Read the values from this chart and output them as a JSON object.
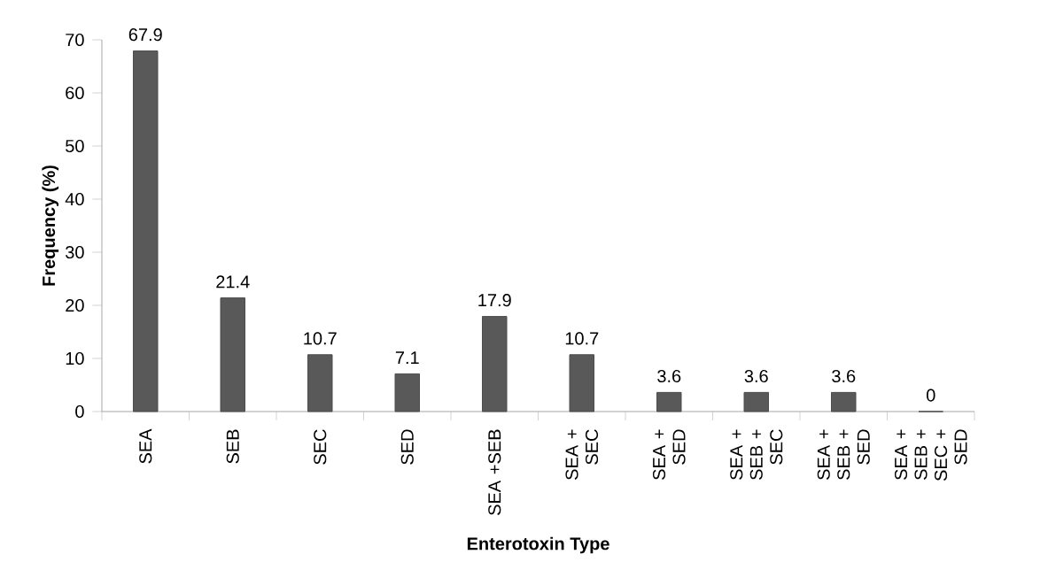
{
  "chart_data": {
    "type": "bar",
    "xlabel": "Enterotoxin Type",
    "ylabel": "Frequency (%)",
    "categories": [
      "SEA",
      "SEB",
      "SEC",
      "SED",
      "SEA +SEB",
      "SEA + SEC",
      "SEA + SED",
      "SEA + SEB + SEC",
      "SEA + SEB + SED",
      "SEA + SEB + SEC + SED"
    ],
    "values": [
      67.9,
      21.4,
      10.7,
      7.1,
      17.9,
      10.7,
      3.6,
      3.6,
      3.6,
      0
    ],
    "color": "#595959",
    "ylim": [
      0,
      70
    ],
    "yticks": [
      0,
      10,
      20,
      30,
      40,
      50,
      60,
      70
    ],
    "grid": false,
    "data_labels": true
  }
}
